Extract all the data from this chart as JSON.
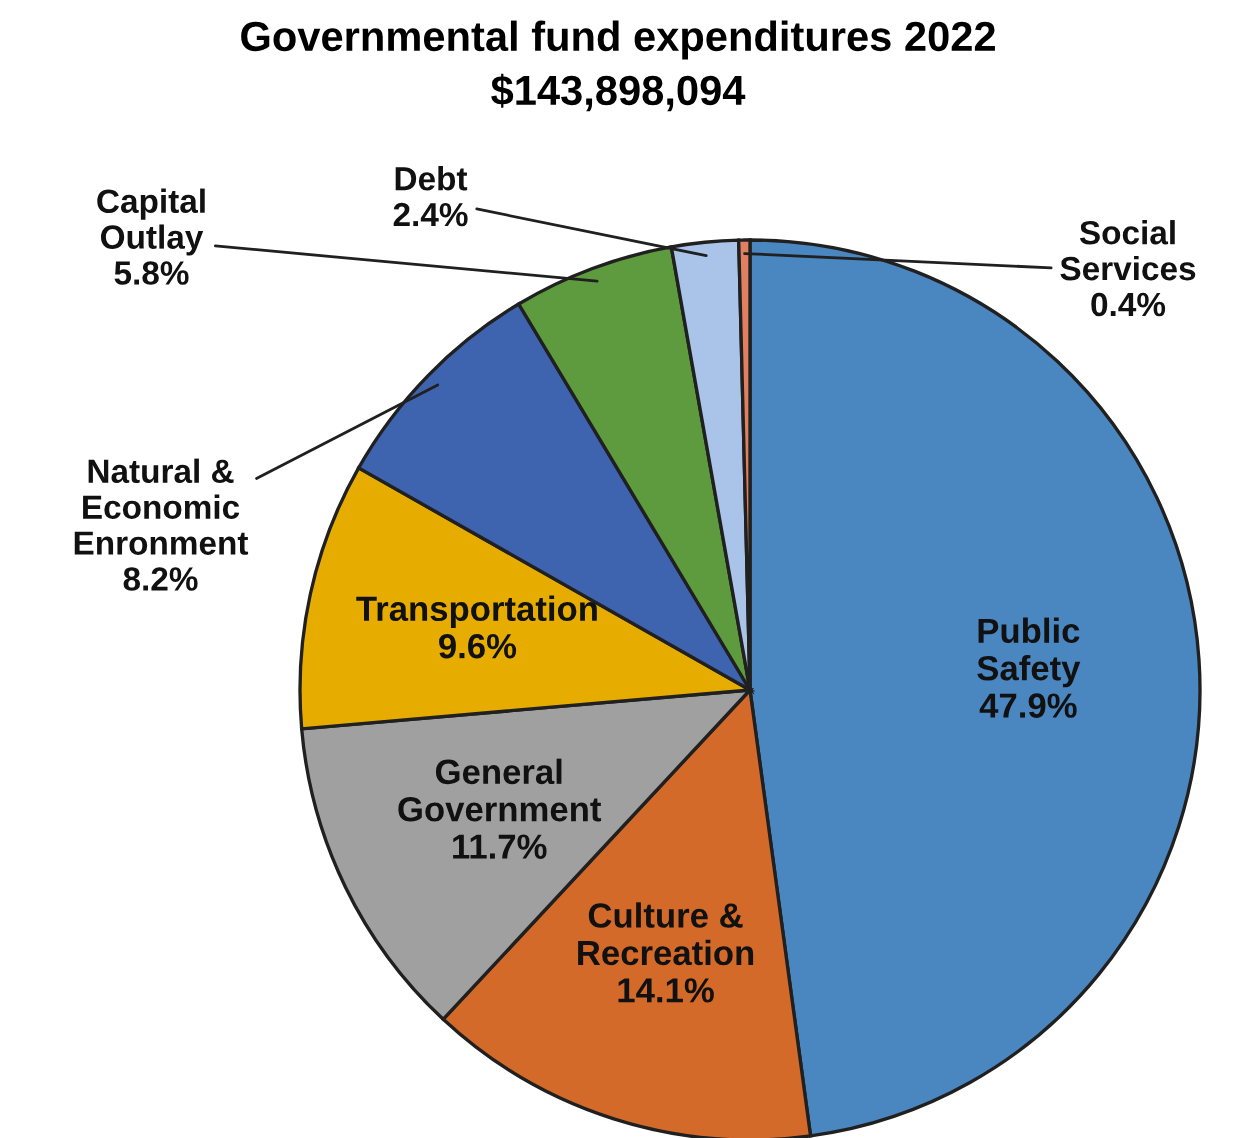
{
  "chart_data": {
    "type": "pie",
    "title": "Governmental fund expenditures 2022",
    "subtitle": "$143,898,094",
    "categories": [
      "Public\nSafety",
      "Culture &\nRecreation",
      "General\nGovernment",
      "Transportation",
      "Natural &\nEconomic\nEnronment",
      "Capital\nOutlay",
      "Debt",
      "Social\nServices"
    ],
    "values": [
      47.9,
      14.1,
      11.7,
      9.6,
      8.2,
      5.8,
      2.4,
      0.4
    ],
    "value_labels": [
      "47.9%",
      "14.1%",
      "11.7%",
      "9.6%",
      "8.2%",
      "5.8%",
      "2.4%",
      "0.4%"
    ],
    "colors": [
      "#4a86c0",
      "#d46a2a",
      "#a0a0a0",
      "#e6ad00",
      "#3e64b0",
      "#5e9a3e",
      "#a9c4e8",
      "#e08060"
    ],
    "legend": false
  }
}
